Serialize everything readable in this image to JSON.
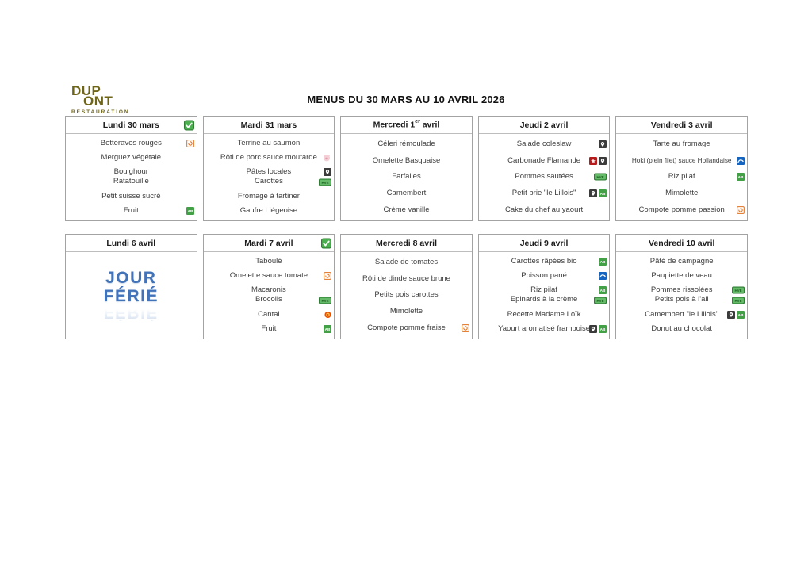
{
  "logo": {
    "text_top": "DUP",
    "text_bottom": "ONT",
    "subtitle": "RESTAURATION",
    "color": "#6f6519"
  },
  "title": "MENUS DU 30 MARS AU 10 AVRIL 2026",
  "colors": {
    "card_border": "#a3a3a3",
    "header_text": "#1c1c1c",
    "item_text": "#3d3d3d",
    "check_green": "#4caf50",
    "holiday_blue": "#4273b8",
    "bio_green": "#43a047",
    "pin_dark": "#3b3b3b",
    "hve_green": "#2e7d32",
    "label_red": "#b71c1c",
    "fish_blue": "#1565c0",
    "label_orange": "#e2711d",
    "logo_olive": "#6f6519"
  },
  "icons": {
    "check": "green-checkmark",
    "bio": "organic-ab-label",
    "pin": "local-origin-pin",
    "hve": "hve-environment-label",
    "red": "red-quality-label",
    "fish": "sustainable-fish-label",
    "orange": "orange-fruit-label",
    "aop": "aop-cheese-label",
    "pork": "pork-label"
  },
  "cards": [
    {
      "date": "Lundi 30 mars",
      "checked": true,
      "slots": [
        [
          {
            "text": "Betteraves rouges",
            "icons": [
              "orange"
            ]
          }
        ],
        [
          {
            "text": "Merguez végétale",
            "icons": []
          }
        ],
        [
          {
            "text": "Boulghour",
            "icons": []
          },
          {
            "text": "Ratatouille",
            "icons": []
          }
        ],
        [
          {
            "text": "Petit suisse sucré",
            "icons": []
          }
        ],
        [
          {
            "text": "Fruit",
            "icons": [
              "bio"
            ]
          }
        ]
      ]
    },
    {
      "date": "Mardi 31 mars",
      "checked": false,
      "slots": [
        [
          {
            "text": "Terrine au saumon",
            "icons": []
          }
        ],
        [
          {
            "text": "Rôti de porc sauce moutarde",
            "icons": [
              "pork"
            ]
          }
        ],
        [
          {
            "text": "Pâtes locales",
            "icons": [
              "pin"
            ]
          },
          {
            "text": "Carottes",
            "icons": [
              "hve"
            ]
          }
        ],
        [
          {
            "text": "Fromage à tartiner",
            "icons": []
          }
        ],
        [
          {
            "text": "Gaufre Liégeoise",
            "icons": []
          }
        ]
      ]
    },
    {
      "date": "Mercredi 1er avril",
      "checked": false,
      "slots": [
        [
          {
            "text": "Céleri rémoulade",
            "icons": []
          }
        ],
        [
          {
            "text": "Omelette Basquaise",
            "icons": []
          }
        ],
        [
          {
            "text": "Farfalles",
            "icons": []
          }
        ],
        [
          {
            "text": "Camembert",
            "icons": []
          }
        ],
        [
          {
            "text": "Crème vanille",
            "icons": []
          }
        ]
      ]
    },
    {
      "date": "Jeudi 2 avril",
      "checked": false,
      "slots": [
        [
          {
            "text": "Salade coleslaw",
            "icons": [
              "pin"
            ]
          }
        ],
        [
          {
            "text": "Carbonade Flamande",
            "icons": [
              "red",
              "pin"
            ]
          }
        ],
        [
          {
            "text": "Pommes sautées",
            "icons": [
              "hve"
            ]
          }
        ],
        [
          {
            "text": "Petit brie \"le Lillois\"",
            "icons": [
              "pin",
              "bio"
            ]
          }
        ],
        [
          {
            "text": "Cake du chef au yaourt",
            "icons": []
          }
        ]
      ]
    },
    {
      "date": "Vendredi 3 avril",
      "checked": false,
      "slots": [
        [
          {
            "text": "Tarte au fromage",
            "icons": []
          }
        ],
        [
          {
            "text": "Hoki (plein filet) sauce Hollandaise",
            "icons": [
              "fish"
            ]
          }
        ],
        [
          {
            "text": "Riz pilaf",
            "icons": [
              "bio"
            ]
          }
        ],
        [
          {
            "text": "Mimolette",
            "icons": []
          }
        ],
        [
          {
            "text": "Compote pomme passion",
            "icons": [
              "orange"
            ]
          }
        ]
      ]
    },
    {
      "date": "Lundi 6 avril",
      "checked": false,
      "holiday": [
        "JOUR",
        "FÉRIÉ"
      ]
    },
    {
      "date": "Mardi 7 avril",
      "checked": true,
      "slots": [
        [
          {
            "text": "Taboulé",
            "icons": []
          }
        ],
        [
          {
            "text": "Omelette sauce tomate",
            "icons": [
              "orange"
            ]
          }
        ],
        [
          {
            "text": "Macaronis",
            "icons": []
          },
          {
            "text": "Brocolis",
            "icons": [
              "hve"
            ]
          }
        ],
        [
          {
            "text": "Cantal",
            "icons": [
              "aop"
            ]
          }
        ],
        [
          {
            "text": "Fruit",
            "icons": [
              "bio"
            ]
          }
        ]
      ]
    },
    {
      "date": "Mercredi 8 avril",
      "checked": false,
      "slots": [
        [
          {
            "text": "Salade de tomates",
            "icons": []
          }
        ],
        [
          {
            "text": "Rôti de dinde sauce brune",
            "icons": []
          }
        ],
        [
          {
            "text": "Petits pois carottes",
            "icons": []
          }
        ],
        [
          {
            "text": "Mimolette",
            "icons": []
          }
        ],
        [
          {
            "text": "Compote pomme fraise",
            "icons": [
              "orange"
            ]
          }
        ]
      ]
    },
    {
      "date": "Jeudi 9 avril",
      "checked": false,
      "slots": [
        [
          {
            "text": "Carottes râpées bio",
            "icons": [
              "bio"
            ]
          }
        ],
        [
          {
            "text": "Poisson pané",
            "icons": [
              "fish"
            ]
          }
        ],
        [
          {
            "text": "Riz pilaf",
            "icons": [
              "bio"
            ]
          },
          {
            "text": "Epinards à la crème",
            "icons": [
              "hve"
            ]
          }
        ],
        [
          {
            "text": "Recette Madame Loïk",
            "icons": []
          }
        ],
        [
          {
            "text": "Yaourt aromatisé framboise",
            "icons": [
              "pin",
              "bio"
            ]
          }
        ]
      ]
    },
    {
      "date": "Vendredi 10 avril",
      "checked": false,
      "slots": [
        [
          {
            "text": "Pâté de campagne",
            "icons": []
          }
        ],
        [
          {
            "text": "Paupiette de veau",
            "icons": []
          }
        ],
        [
          {
            "text": "Pommes rissolées",
            "icons": [
              "hve"
            ]
          },
          {
            "text": "Petits pois à l'ail",
            "icons": [
              "hve"
            ]
          }
        ],
        [
          {
            "text": "Camembert \"le Lillois\"",
            "icons": [
              "pin",
              "bio"
            ]
          }
        ],
        [
          {
            "text": "Donut au chocolat",
            "icons": []
          }
        ]
      ]
    }
  ]
}
